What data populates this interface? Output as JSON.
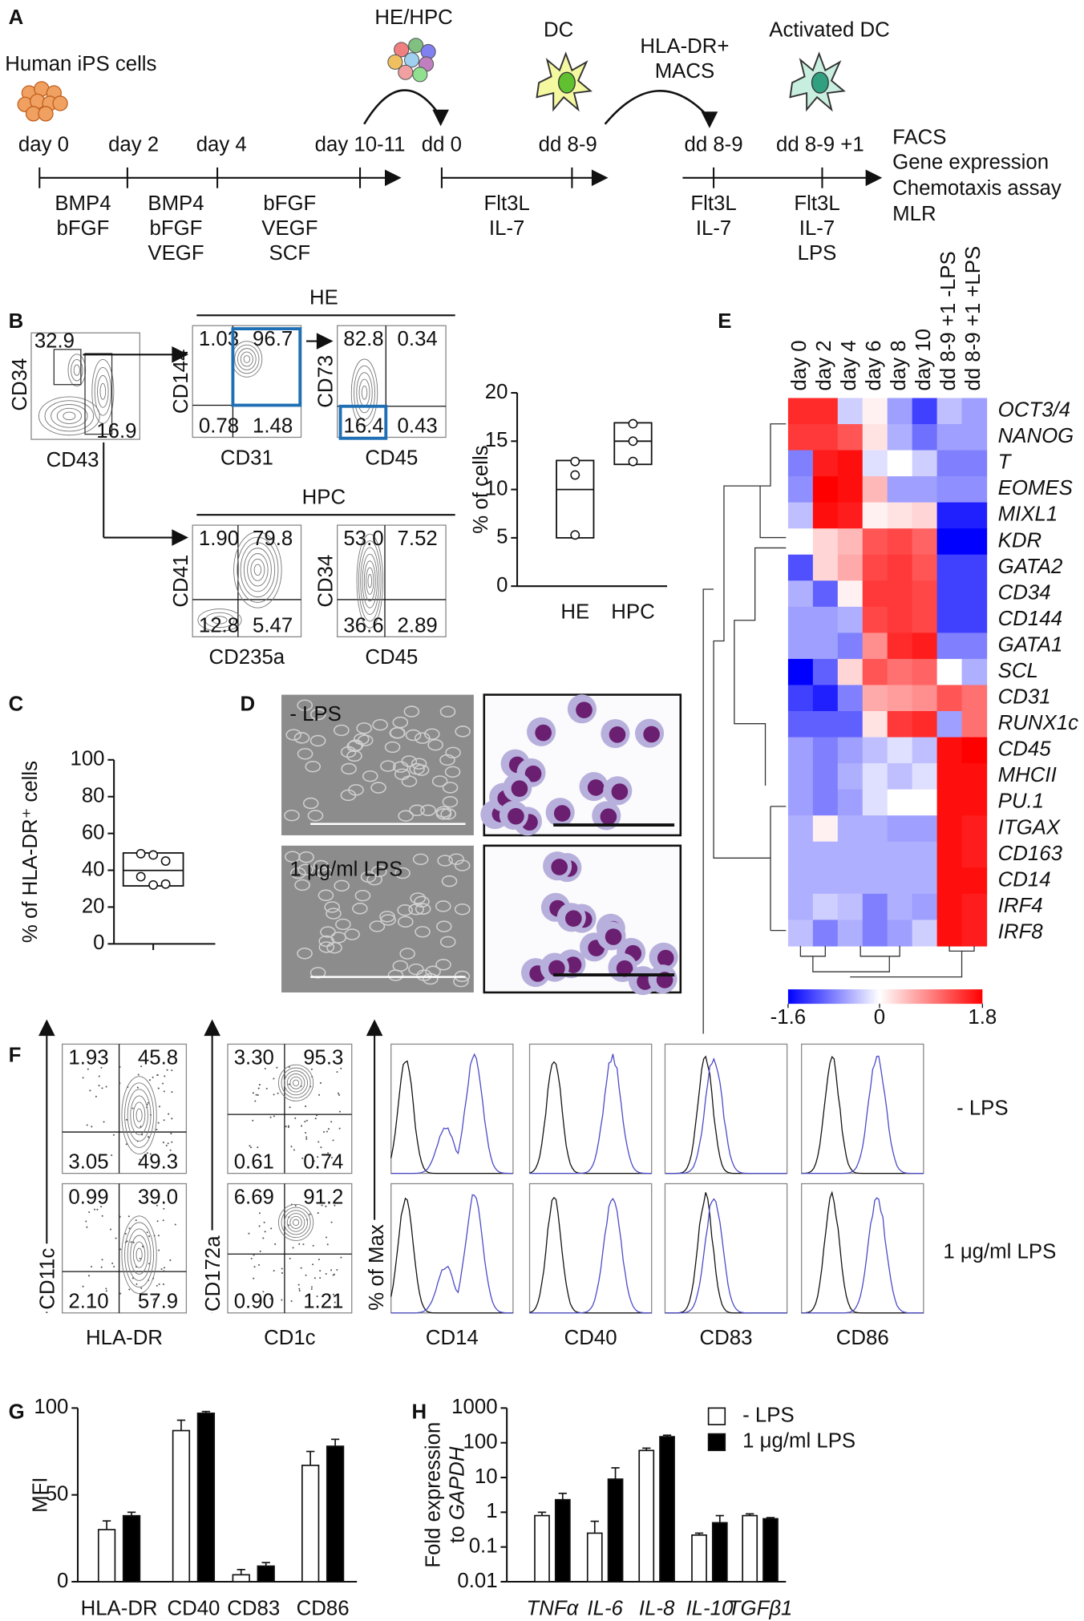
{
  "panel_labels": [
    "A",
    "B",
    "C",
    "D",
    "E",
    "F",
    "G",
    "H"
  ],
  "protocol": {
    "stage_titles": [
      "Human iPS cells",
      "HE/HPC",
      "DC",
      "Activated DC"
    ],
    "timeline_labels": [
      "day 0",
      "day 2",
      "day 4",
      "day 10-11",
      "dd 0",
      "dd 8-9",
      "dd 8-9",
      "dd 8-9 +1"
    ],
    "media": [
      [
        "BMP4",
        "bFGF"
      ],
      [
        "BMP4",
        "bFGF",
        "VEGF"
      ],
      [
        "bFGF",
        "VEGF",
        "SCF"
      ],
      [
        "Flt3L",
        "IL-7"
      ],
      [
        "Flt3L",
        "IL-7"
      ],
      [
        "Flt3L",
        "IL-7",
        "LPS"
      ]
    ],
    "sort_label": [
      "HLA-DR+",
      "MACS"
    ],
    "readouts": [
      "FACS",
      "Gene expression",
      "Chemotaxis assay",
      "MLR"
    ]
  },
  "flow_b": {
    "gate": {
      "ylabel": "CD34",
      "xlabel": "CD43",
      "numbers": [
        "32.9",
        "16.9"
      ]
    },
    "he_title": "HE",
    "hpc_title": "HPC",
    "plots": [
      {
        "ylabel": "CD144",
        "xlabel": "CD31",
        "quadrants": [
          "1.03",
          "96.7",
          "0.78",
          "1.48"
        ]
      },
      {
        "ylabel": "CD73",
        "xlabel": "CD45",
        "quadrants": [
          "82.8",
          "0.34",
          "16.4",
          "0.43"
        ]
      },
      {
        "ylabel": "CD41",
        "xlabel": "CD235a",
        "quadrants": [
          "1.90",
          "79.8",
          "12.8",
          "5.47"
        ]
      },
      {
        "ylabel": "CD34",
        "xlabel": "CD45",
        "quadrants": [
          "53.0",
          "7.52",
          "36.6",
          "2.89"
        ]
      }
    ]
  },
  "micrographs": {
    "labels": [
      "- LPS",
      "1 μg/ml LPS"
    ]
  },
  "flow_f": {
    "rows": [
      "- LPS",
      "1 μg/ml LPS"
    ],
    "dot_plots": [
      {
        "ylabel": "CD11c",
        "xlabel": "HLA-DR",
        "quadrants": [
          [
            "1.93",
            "45.8",
            "3.05",
            "49.3"
          ],
          [
            "0.99",
            "39.0",
            "2.10",
            "57.9"
          ]
        ]
      },
      {
        "ylabel": "CD172a",
        "xlabel": "CD1c",
        "quadrants": [
          [
            "3.30",
            "95.3",
            "0.61",
            "0.74"
          ],
          [
            "6.69",
            "91.2",
            "0.90",
            "1.21"
          ]
        ]
      }
    ],
    "hist_ylabel": "% of Max",
    "hist_markers": [
      "CD14",
      "CD40",
      "CD83",
      "CD86"
    ]
  },
  "chart_data": [
    {
      "type": "box",
      "ylabel": "% of cells",
      "categories": [
        "HE",
        "HPC"
      ],
      "boxes": [
        {
          "low": 5,
          "median": 10,
          "high": 13
        },
        {
          "low": 12.6,
          "median": 15,
          "high": 16.9
        }
      ],
      "points": [
        [
          12.9,
          11.5,
          5.3
        ],
        [
          16.8,
          15,
          12.9
        ]
      ],
      "ylim": [
        0,
        20
      ],
      "yticks": [
        0,
        5,
        10,
        15,
        20
      ]
    },
    {
      "type": "box",
      "ylabel": "% of HLA-DR⁺ cells",
      "boxes": [
        {
          "low": 31.5,
          "median": 39.9,
          "high": 49.4
        }
      ],
      "points": [
        [
          49,
          48.3,
          45,
          36.5,
          32,
          32.5
        ]
      ],
      "ylim": [
        0,
        100
      ],
      "yticks": [
        0,
        20,
        40,
        60,
        80,
        100
      ]
    },
    {
      "type": "heatmap",
      "columns": [
        "day 0",
        "day 2",
        "day 4",
        "day 6",
        "day 8",
        "day 10",
        "dd 8-9 +1 -LPS",
        "dd 8-9 +1 +LPS"
      ],
      "rows": [
        "OCT3/4",
        "NANOG",
        "T",
        "EOMES",
        "MIXL1",
        "KDR",
        "GATA2",
        "CD34",
        "CD144",
        "GATA1",
        "SCL",
        "CD31",
        "RUNX1c",
        "CD45",
        "MHCII",
        "PU.1",
        "ITGAX",
        "CD163",
        "CD14",
        "IRF4",
        "IRF8"
      ],
      "values": [
        [
          1.5,
          1.5,
          -0.3,
          0.1,
          -0.6,
          -1.2,
          -0.4,
          -0.6
        ],
        [
          1.4,
          1.4,
          1.2,
          0.2,
          -0.5,
          -0.9,
          -0.6,
          -0.6
        ],
        [
          -0.8,
          1.6,
          1.7,
          -0.2,
          0,
          -0.3,
          -0.8,
          -0.8
        ],
        [
          -0.7,
          1.8,
          1.7,
          0.5,
          -0.6,
          -0.6,
          -0.7,
          -0.7
        ],
        [
          -0.4,
          1.7,
          1.6,
          0.1,
          0.2,
          0.3,
          -1.4,
          -1.4
        ],
        [
          0,
          0.3,
          0.5,
          1.2,
          1.3,
          1.1,
          -1.6,
          -1.6
        ],
        [
          -1.1,
          0.3,
          0.6,
          1.3,
          1.4,
          1.2,
          -1.2,
          -1.2
        ],
        [
          -0.5,
          -1.0,
          0.1,
          1.4,
          1.4,
          1.3,
          -1.2,
          -1.2
        ],
        [
          -0.6,
          -0.6,
          -0.5,
          1.3,
          1.4,
          1.3,
          -1.2,
          -1.2
        ],
        [
          -0.6,
          -0.6,
          -0.8,
          0.8,
          1.5,
          1.6,
          -0.8,
          -0.8
        ],
        [
          -1.6,
          -1.0,
          0.3,
          1.2,
          1.0,
          1.1,
          0,
          -0.5
        ],
        [
          -1.2,
          -1.4,
          -0.8,
          0.6,
          0.7,
          0.8,
          1.2,
          1.0
        ],
        [
          -1.0,
          -1.0,
          -1.0,
          0.2,
          1.4,
          1.5,
          -0.6,
          1.0
        ],
        [
          -0.6,
          -0.8,
          -0.6,
          -0.4,
          -0.2,
          -0.4,
          1.7,
          1.8
        ],
        [
          -0.6,
          -0.8,
          -0.5,
          -0.2,
          -0.4,
          -0.2,
          1.7,
          1.7
        ],
        [
          -0.6,
          -0.8,
          -0.6,
          -0.2,
          0,
          0,
          1.7,
          1.7
        ],
        [
          -0.5,
          0.1,
          -0.5,
          -0.5,
          -0.6,
          -0.6,
          1.7,
          1.6
        ],
        [
          -0.5,
          -0.5,
          -0.5,
          -0.5,
          -0.5,
          -0.5,
          1.7,
          1.6
        ],
        [
          -0.5,
          -0.5,
          -0.5,
          -0.5,
          -0.5,
          -0.5,
          1.7,
          1.7
        ],
        [
          -0.5,
          -0.3,
          -0.4,
          -0.8,
          -0.5,
          -0.6,
          1.7,
          1.6
        ],
        [
          -0.4,
          -0.8,
          -0.5,
          -0.8,
          -0.6,
          -0.3,
          1.7,
          1.6
        ]
      ],
      "zlim": [
        -1.6,
        1.8
      ],
      "zticks": [
        -1.6,
        0,
        1.8
      ],
      "colors": [
        "#0000ff",
        "#ffffff",
        "#ff0000"
      ]
    },
    {
      "type": "bar",
      "ylabel": "MFI",
      "categories": [
        "HLA-DR",
        "CD40",
        "CD83",
        "CD86"
      ],
      "series": [
        {
          "color": "#ffffff",
          "values": [
            30,
            87,
            4,
            67
          ],
          "errors": [
            5,
            6,
            3,
            8
          ]
        },
        {
          "color": "#000000",
          "values": [
            38,
            97,
            9,
            78
          ],
          "errors": [
            2,
            1,
            2,
            4
          ]
        }
      ],
      "ylim": [
        0,
        100
      ],
      "yticks": [
        0,
        50,
        100
      ]
    },
    {
      "type": "bar",
      "log": true,
      "ylabel": {
        "line1": "Fold expression",
        "line2a": "to ",
        "line2b": "GAPDH"
      },
      "categories": [
        "TNFα",
        "IL-6",
        "IL-8",
        "IL-10",
        "TGFβ1"
      ],
      "series": [
        {
          "name": "- LPS",
          "color": "#ffffff",
          "values": [
            0.8,
            0.25,
            60,
            0.22,
            0.8
          ],
          "errors": [
            0.2,
            0.3,
            10,
            0.03,
            0.1
          ]
        },
        {
          "name": "1 μg/ml LPS",
          "color": "#000000",
          "values": [
            2.3,
            9,
            150,
            0.5,
            0.65
          ],
          "errors": [
            1.2,
            10,
            15,
            0.3,
            0.05
          ]
        }
      ],
      "ylim": [
        0.01,
        1000
      ],
      "yticks": [
        0.01,
        0.1,
        1,
        10,
        100,
        1000
      ],
      "legend": "top-right"
    }
  ]
}
